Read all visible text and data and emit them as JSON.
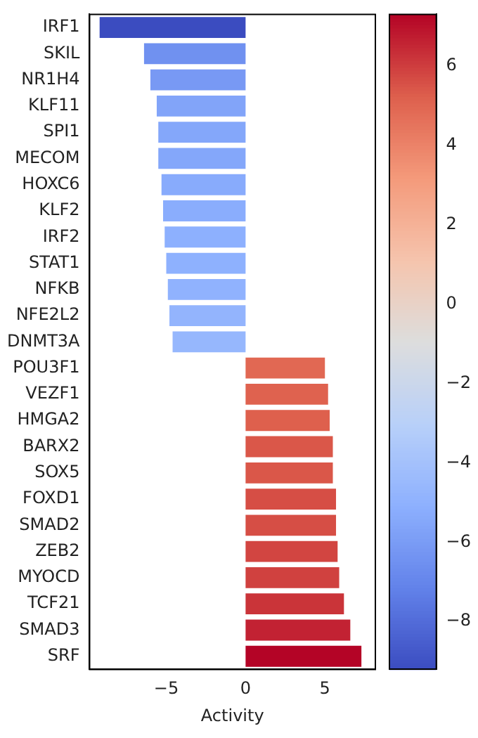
{
  "chart_data": {
    "type": "bar",
    "orientation": "horizontal",
    "xlabel": "Activity",
    "categories": [
      "IRF1",
      "SKIL",
      "NR1H4",
      "KLF11",
      "SPI1",
      "MECOM",
      "HOXC6",
      "KLF2",
      "IRF2",
      "STAT1",
      "NFKB",
      "NFE2L2",
      "DNMT3A",
      "POU3F1",
      "VEZF1",
      "HMGA2",
      "BARX2",
      "SOX5",
      "FOXD1",
      "SMAD2",
      "ZEB2",
      "MYOCD",
      "TCF21",
      "SMAD3",
      "SRF"
    ],
    "values": [
      -9.2,
      -6.4,
      -6,
      -5.6,
      -5.5,
      -5.5,
      -5.3,
      -5.2,
      -5.1,
      -5,
      -4.9,
      -4.8,
      -4.6,
      5,
      5.2,
      5.3,
      5.5,
      5.5,
      5.7,
      5.7,
      5.8,
      5.9,
      6.2,
      6.6,
      7.3
    ],
    "colors": [
      "#3b4cc0",
      "#7091f0",
      "#7899f4",
      "#82a4f9",
      "#84a7fa",
      "#84a7fa",
      "#88abfc",
      "#8aadfd",
      "#8db0fe",
      "#8eb1fe",
      "#90b2fe",
      "#93b4fd",
      "#96b7fd",
      "#e16853",
      "#df624f",
      "#de604d",
      "#da5749",
      "#da5749",
      "#d64e45",
      "#d64e45",
      "#d24541",
      "#d0413f",
      "#ca3439",
      "#c22233",
      "#b40426"
    ],
    "xlim": [
      -9.83,
      8.18
    ],
    "xticks": [
      {
        "value": -5,
        "label": "−5"
      },
      0,
      5
    ],
    "clim": [
      -9.2,
      7.3
    ],
    "cticks": [
      {
        "value": -8,
        "label": "−8"
      },
      {
        "value": -6,
        "label": "−6"
      },
      {
        "value": -4,
        "label": "−4"
      },
      {
        "value": -2,
        "label": "−2"
      },
      0,
      2,
      4,
      6
    ],
    "grid": false,
    "legend": false
  }
}
